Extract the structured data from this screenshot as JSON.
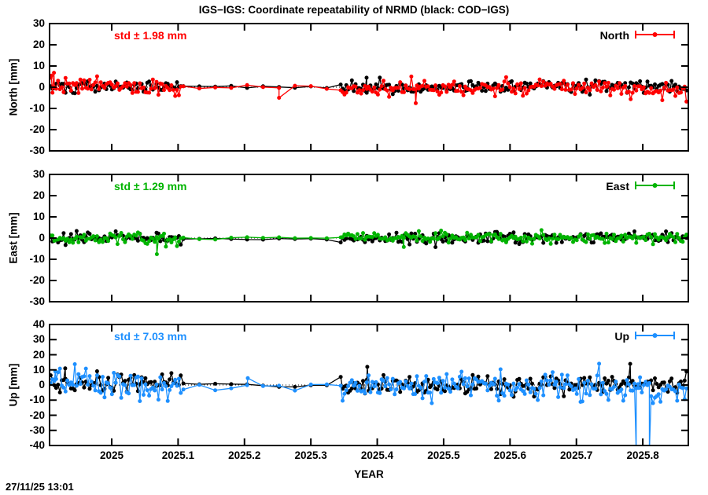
{
  "title": "IGS−IGS: Coordinate repeatability of NRMD (black: COD−IGS)",
  "timestamp": "27/11/25 13:01",
  "colors": {
    "north": "#ff0000",
    "east": "#00b400",
    "up": "#1e90ff",
    "reference": "#000000"
  },
  "x_axis": {
    "label": "YEAR",
    "min": 2024.9064,
    "max": 2025.8686,
    "tick_values": [
      2025,
      2025.1,
      2025.2,
      2025.3,
      2025.4,
      2025.5,
      2025.6,
      2025.7,
      2025.8
    ],
    "tick_labels": [
      "2025",
      "2025.1",
      "2025.2",
      "2025.3",
      "2025.4",
      "2025.5",
      "2025.6",
      "2025.7",
      "2025.8"
    ]
  },
  "chart_data": [
    {
      "type": "scatter",
      "panel": "North",
      "ylabel": "North [mm]",
      "std_label": "std ± 1.98 mm",
      "std_value_mm": 1.98,
      "legend_label": "North",
      "ylim": [
        -30,
        30
      ],
      "ytick_values": [
        30,
        20,
        10,
        0,
        -10,
        -20,
        -30
      ],
      "ytick_labels": [
        "30",
        "20",
        "10",
        "0",
        "-10",
        "-20",
        "-30"
      ],
      "zero_line": true,
      "segments": {
        "dense": [
          [
            2024.908,
            2025.105
          ],
          [
            2025.345,
            2025.867
          ]
        ],
        "sparse": [
          [
            2025.108,
            2025.345
          ]
        ]
      },
      "series": [
        {
          "name": "COD−IGS",
          "color": "#000000",
          "scatter_mm": 1.4,
          "gap_scatter_mm": 0.35,
          "wander_mm": 0.3,
          "phase": 0.8,
          "bias1": 0,
          "bias2": 0.3,
          "seed": 101,
          "anomalies": [
            {
              "x": 2025.384,
              "y": 4.5
            }
          ]
        },
        {
          "name": "IGS−IGS",
          "color": "#ff0000",
          "scatter_mm": 1.9,
          "gap_scatter_mm": 0.9,
          "wander_mm": 0.4,
          "phase": 2.1,
          "bias1": 0.4,
          "bias2": -0.8,
          "seed": 202,
          "anomalies": [
            {
              "x": 2024.909,
              "y": 5.5
            },
            {
              "x": 2024.913,
              "y": 6.8
            },
            {
              "x": 2025.252,
              "y": -5.0
            },
            {
              "x": 2025.458,
              "y": -7.5
            }
          ]
        }
      ]
    },
    {
      "type": "scatter",
      "panel": "East",
      "ylabel": "East [mm]",
      "std_label": "std ± 1.29 mm",
      "std_value_mm": 1.29,
      "legend_label": "East",
      "ylim": [
        -30,
        30
      ],
      "ytick_values": [
        30,
        20,
        10,
        0,
        -10,
        -20,
        -30
      ],
      "ytick_labels": [
        "30",
        "20",
        "10",
        "0",
        "-10",
        "-20",
        "-30"
      ],
      "zero_line": true,
      "segments": {
        "dense": [
          [
            2024.908,
            2025.105
          ],
          [
            2025.345,
            2025.867
          ]
        ],
        "sparse": [
          [
            2025.108,
            2025.345
          ]
        ]
      },
      "series": [
        {
          "name": "COD−IGS",
          "color": "#000000",
          "scatter_mm": 1.3,
          "gap_scatter_mm": 0.3,
          "wander_mm": 0.3,
          "phase": 1.6,
          "bias1": 0,
          "bias2": 0,
          "seed": 303,
          "anomalies": []
        },
        {
          "name": "IGS−IGS",
          "color": "#00b400",
          "scatter_mm": 1.25,
          "gap_scatter_mm": 0.5,
          "wander_mm": 0.3,
          "phase": 3.9,
          "bias1": 0,
          "bias2": 0.2,
          "seed": 404,
          "anomalies": [
            {
              "x": 2025.068,
              "y": -7.6
            },
            {
              "x": 2025.44,
              "y": -4.2
            }
          ]
        }
      ]
    },
    {
      "type": "scatter",
      "panel": "Up",
      "ylabel": "Up [mm]",
      "std_label": "std ± 7.03 mm",
      "std_value_mm": 7.03,
      "legend_label": "Up",
      "ylim": [
        -40,
        40
      ],
      "ytick_values": [
        40,
        30,
        20,
        10,
        0,
        -10,
        -20,
        -30,
        -40
      ],
      "ytick_labels": [
        "40",
        "30",
        "20",
        "10",
        "0",
        "-10",
        "-20",
        "-30",
        "-40"
      ],
      "zero_line": true,
      "segments": {
        "dense": [
          [
            2024.908,
            2025.105
          ],
          [
            2025.345,
            2025.867
          ]
        ],
        "sparse": [
          [
            2025.108,
            2025.345
          ]
        ]
      },
      "series": [
        {
          "name": "COD−IGS",
          "color": "#000000",
          "scatter_mm": 3.2,
          "gap_scatter_mm": 0.8,
          "wander_mm": 0.8,
          "phase": 0.4,
          "bias1": 0.5,
          "bias2": 0,
          "seed": 505,
          "anomalies": [
            {
              "x": 2024.93,
              "y": 11.0
            },
            {
              "x": 2025.385,
              "y": 12.0
            },
            {
              "x": 2025.781,
              "y": 14.0
            }
          ]
        },
        {
          "name": "IGS−IGS",
          "color": "#1e90ff",
          "scatter_mm": 5.0,
          "gap_scatter_mm": 1.8,
          "wander_mm": 1.8,
          "phase": 2.7,
          "bias1": 1.0,
          "bias2": -1.8,
          "seed": 606,
          "anomalies": [
            {
              "x": 2024.915,
              "y": 9.0
            },
            {
              "x": 2025.205,
              "y": 4.5
            },
            {
              "x": 2025.79,
              "y": -44.0
            },
            {
              "x": 2025.794,
              "y": -2.0
            },
            {
              "x": 2025.81,
              "y": -44.0
            }
          ]
        }
      ]
    }
  ]
}
